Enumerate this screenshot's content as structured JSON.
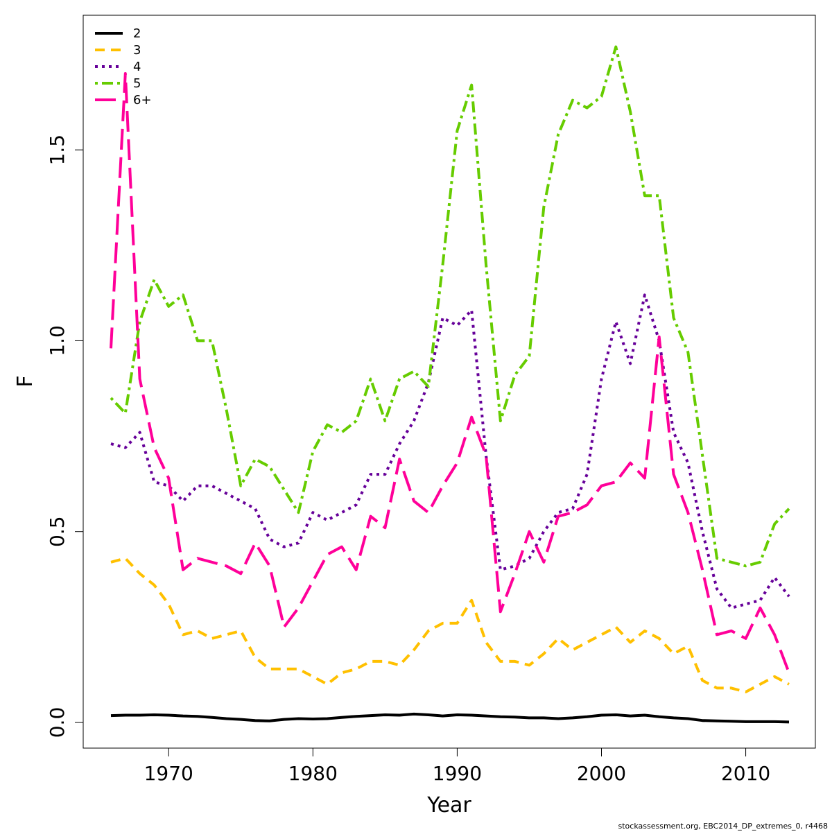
{
  "footer": "stockassessment.org, EBC2014_DP_extremes_0, r4468",
  "chart_data": {
    "type": "line",
    "title": "",
    "xlabel": "Year",
    "ylabel": "F",
    "xlim": [
      1966,
      2013
    ],
    "ylim": [
      0,
      1.78
    ],
    "x_ticks": [
      1970,
      1980,
      1990,
      2000,
      2010
    ],
    "y_ticks": [
      0.0,
      0.5,
      1.0,
      1.5
    ],
    "y_tick_labels": [
      "0.0",
      "0.5",
      "1.0",
      "1.5"
    ],
    "legend_position": "top-left",
    "grid": false,
    "x": [
      1966,
      1967,
      1968,
      1969,
      1970,
      1971,
      1972,
      1973,
      1974,
      1975,
      1976,
      1977,
      1978,
      1979,
      1980,
      1981,
      1982,
      1983,
      1984,
      1985,
      1986,
      1987,
      1988,
      1989,
      1990,
      1991,
      1992,
      1993,
      1994,
      1995,
      1996,
      1997,
      1998,
      1999,
      2000,
      2001,
      2002,
      2003,
      2004,
      2005,
      2006,
      2007,
      2008,
      2009,
      2010,
      2011,
      2012,
      2013
    ],
    "series": [
      {
        "name": "2",
        "color": "#000000",
        "dash": "solid",
        "values": [
          0.018,
          0.019,
          0.019,
          0.02,
          0.019,
          0.017,
          0.016,
          0.013,
          0.01,
          0.008,
          0.005,
          0.004,
          0.008,
          0.01,
          0.009,
          0.01,
          0.013,
          0.016,
          0.018,
          0.02,
          0.019,
          0.022,
          0.02,
          0.017,
          0.02,
          0.019,
          0.017,
          0.015,
          0.014,
          0.012,
          0.012,
          0.01,
          0.012,
          0.015,
          0.019,
          0.02,
          0.017,
          0.019,
          0.015,
          0.012,
          0.01,
          0.005,
          0.004,
          0.003,
          0.002,
          0.002,
          0.002,
          0.001
        ]
      },
      {
        "name": "3",
        "color": "#FFC000",
        "dash": "dashed",
        "values": [
          0.42,
          0.43,
          0.39,
          0.36,
          0.31,
          0.23,
          0.24,
          0.22,
          0.23,
          0.24,
          0.17,
          0.14,
          0.14,
          0.14,
          0.12,
          0.1,
          0.13,
          0.14,
          0.16,
          0.16,
          0.15,
          0.19,
          0.24,
          0.26,
          0.26,
          0.32,
          0.21,
          0.16,
          0.16,
          0.15,
          0.18,
          0.22,
          0.19,
          0.21,
          0.23,
          0.25,
          0.21,
          0.24,
          0.22,
          0.18,
          0.2,
          0.11,
          0.09,
          0.09,
          0.08,
          0.1,
          0.12,
          0.1
        ]
      },
      {
        "name": "4",
        "color": "#660099",
        "dash": "dotted",
        "values": [
          0.73,
          0.72,
          0.76,
          0.63,
          0.62,
          0.58,
          0.62,
          0.62,
          0.6,
          0.58,
          0.56,
          0.48,
          0.46,
          0.47,
          0.55,
          0.53,
          0.55,
          0.57,
          0.65,
          0.65,
          0.73,
          0.79,
          0.89,
          1.06,
          1.04,
          1.08,
          0.7,
          0.4,
          0.41,
          0.43,
          0.5,
          0.55,
          0.56,
          0.65,
          0.9,
          1.05,
          0.94,
          1.12,
          1.0,
          0.76,
          0.68,
          0.5,
          0.35,
          0.3,
          0.31,
          0.32,
          0.38,
          0.33
        ]
      },
      {
        "name": "5",
        "color": "#66CC00",
        "dash": "dotdash",
        "values": [
          0.85,
          0.81,
          1.05,
          1.16,
          1.09,
          1.12,
          1.0,
          1.0,
          0.82,
          0.62,
          0.69,
          0.67,
          0.61,
          0.55,
          0.71,
          0.78,
          0.76,
          0.79,
          0.9,
          0.79,
          0.9,
          0.92,
          0.88,
          1.2,
          1.55,
          1.67,
          1.2,
          0.79,
          0.91,
          0.96,
          1.35,
          1.54,
          1.63,
          1.61,
          1.64,
          1.77,
          1.6,
          1.38,
          1.38,
          1.06,
          0.97,
          0.7,
          0.43,
          0.42,
          0.41,
          0.42,
          0.52,
          0.56
        ]
      },
      {
        "name": "6+",
        "color": "#FF0099",
        "dash": "longdash",
        "values": [
          0.98,
          1.7,
          0.9,
          0.72,
          0.64,
          0.4,
          0.43,
          0.42,
          0.41,
          0.39,
          0.47,
          0.41,
          0.25,
          0.3,
          0.37,
          0.44,
          0.46,
          0.4,
          0.54,
          0.51,
          0.69,
          0.58,
          0.55,
          0.62,
          0.68,
          0.8,
          0.7,
          0.29,
          0.39,
          0.5,
          0.42,
          0.54,
          0.55,
          0.57,
          0.62,
          0.63,
          0.68,
          0.64,
          1.01,
          0.65,
          0.55,
          0.4,
          0.23,
          0.24,
          0.22,
          0.3,
          0.23,
          0.13
        ]
      }
    ]
  }
}
